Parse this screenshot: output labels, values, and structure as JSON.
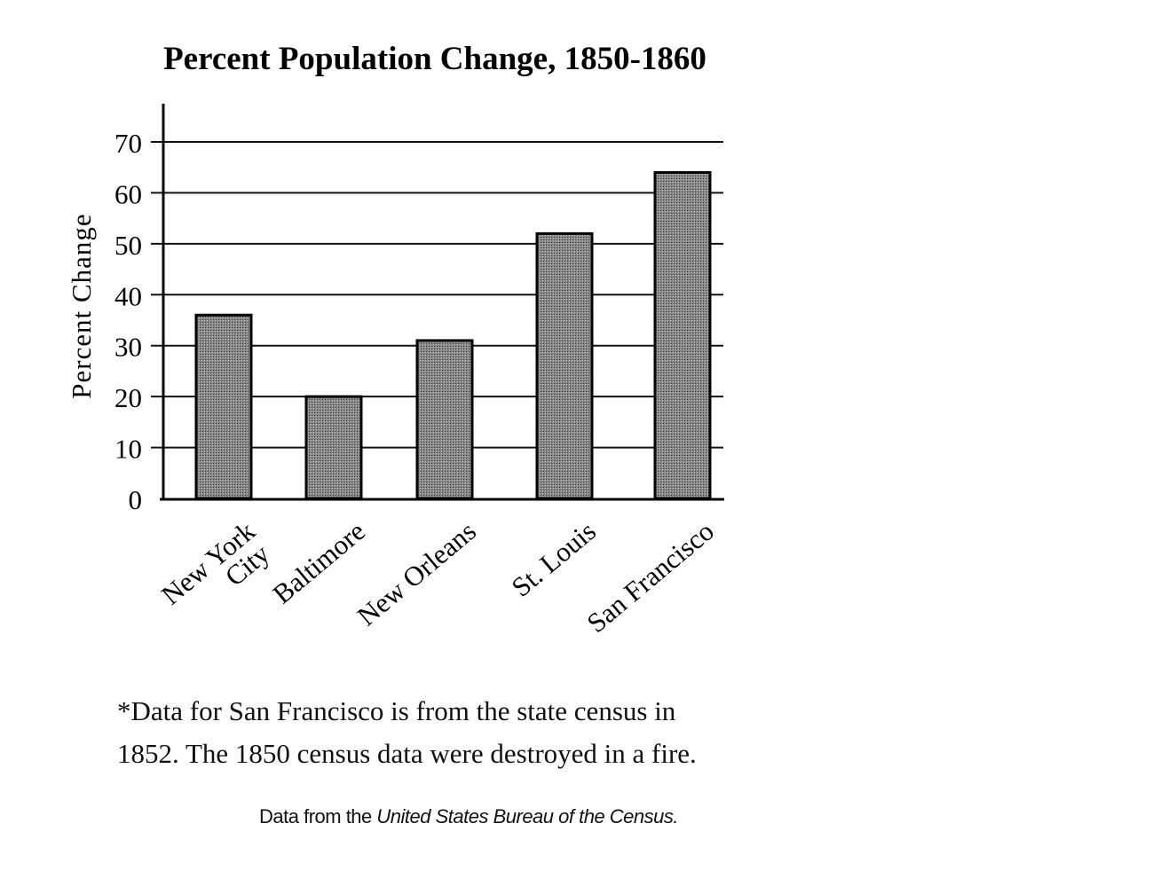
{
  "chart_data": {
    "type": "bar",
    "title": "Percent Population Change, 1850-1860",
    "xlabel": "",
    "ylabel": "Percent Change",
    "categories": [
      "New York City",
      "Baltimore",
      "New Orleans",
      "St. Louis",
      "San Francisco"
    ],
    "category_lines": [
      [
        "New York",
        "City"
      ],
      [
        "Baltimore"
      ],
      [
        "New Orleans"
      ],
      [
        "St. Louis"
      ],
      [
        "San Francisco"
      ]
    ],
    "values": [
      36,
      20,
      31,
      52,
      64
    ],
    "ylim": [
      0,
      70
    ],
    "yticks": [
      0,
      10,
      20,
      30,
      40,
      50,
      60,
      70
    ],
    "grid": true,
    "bar_color": "#7a7a7a"
  },
  "footnote": {
    "line1": "*Data for San Francisco is from the state census in",
    "line2": "1852. The 1850 census data were destroyed in a fire."
  },
  "source": {
    "prefix": "Data from the ",
    "italic": "United States Bureau of the Census."
  }
}
